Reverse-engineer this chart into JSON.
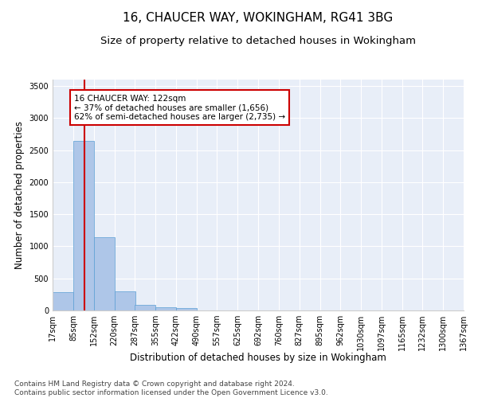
{
  "title": "16, CHAUCER WAY, WOKINGHAM, RG41 3BG",
  "subtitle": "Size of property relative to detached houses in Wokingham",
  "xlabel": "Distribution of detached houses by size in Wokingham",
  "ylabel": "Number of detached properties",
  "bar_color": "#aec6e8",
  "bar_edge_color": "#5a9fd4",
  "background_color": "#e8eef8",
  "grid_color": "#ffffff",
  "annotation_box_color": "#cc0000",
  "vline_color": "#cc0000",
  "vline_x": 122,
  "annotation_text": "16 CHAUCER WAY: 122sqm\n← 37% of detached houses are smaller (1,656)\n62% of semi-detached houses are larger (2,735) →",
  "bins": [
    17,
    85,
    152,
    220,
    287,
    355,
    422,
    490,
    557,
    625,
    692,
    760,
    827,
    895,
    962,
    1030,
    1097,
    1165,
    1232,
    1300,
    1367
  ],
  "bin_labels": [
    "17sqm",
    "85sqm",
    "152sqm",
    "220sqm",
    "287sqm",
    "355sqm",
    "422sqm",
    "490sqm",
    "557sqm",
    "625sqm",
    "692sqm",
    "760sqm",
    "827sqm",
    "895sqm",
    "962sqm",
    "1030sqm",
    "1097sqm",
    "1165sqm",
    "1232sqm",
    "1300sqm",
    "1367sqm"
  ],
  "bar_heights": [
    280,
    2640,
    1140,
    295,
    90,
    50,
    35,
    0,
    0,
    0,
    0,
    0,
    0,
    0,
    0,
    0,
    0,
    0,
    0,
    0
  ],
  "ylim": [
    0,
    3600
  ],
  "yticks": [
    0,
    500,
    1000,
    1500,
    2000,
    2500,
    3000,
    3500
  ],
  "footer_text": "Contains HM Land Registry data © Crown copyright and database right 2024.\nContains public sector information licensed under the Open Government Licence v3.0.",
  "title_fontsize": 11,
  "subtitle_fontsize": 9.5,
  "tick_labelsize": 7,
  "ylabel_fontsize": 8.5,
  "xlabel_fontsize": 8.5,
  "footer_fontsize": 6.5
}
